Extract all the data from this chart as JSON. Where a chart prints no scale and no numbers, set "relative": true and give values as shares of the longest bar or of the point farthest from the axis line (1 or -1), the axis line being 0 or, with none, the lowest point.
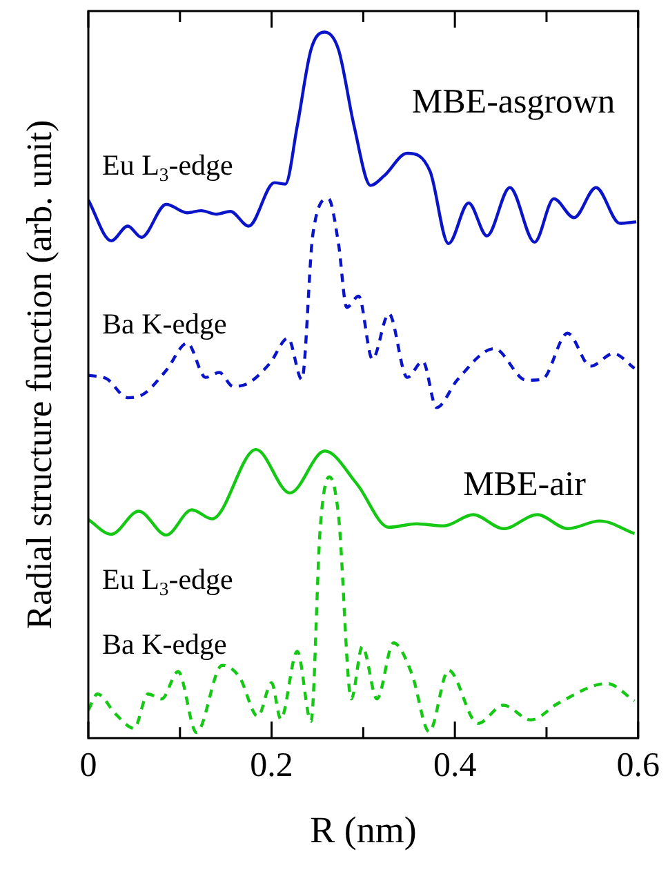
{
  "chart_data": {
    "type": "line",
    "xlabel": "R (nm)",
    "ylabel": "Radial structure function (arb. unit)",
    "relative": true,
    "xlim": [
      0,
      0.6
    ],
    "xticks": [
      0,
      {
        "value": 0.1,
        "label": null
      },
      0.2,
      {
        "value": 0.3,
        "label": null
      },
      0.4,
      {
        "value": 0.5,
        "label": null
      },
      0.6
    ],
    "marker": "none",
    "legend": false,
    "grid": false,
    "annotations": [
      "MBE-asgrown",
      "MBE-air"
    ],
    "series": [
      {
        "name": "Eu L$_{3}$-edge",
        "color": "#0a14c8",
        "line_style": "solid",
        "x": [
          0,
          0.025,
          0.043,
          0.058,
          0.085,
          0.108,
          0.123,
          0.14,
          0.155,
          0.175,
          0.203,
          0.215,
          0.228,
          0.243,
          0.258,
          0.273,
          0.29,
          0.308,
          0.323,
          0.348,
          0.373,
          0.393,
          0.415,
          0.435,
          0.46,
          0.487,
          0.508,
          0.53,
          0.554,
          0.58,
          0.598
        ],
        "values": [
          0.76,
          0.702,
          0.723,
          0.707,
          0.754,
          0.742,
          0.745,
          0.74,
          0.744,
          0.723,
          0.785,
          0.783,
          0.866,
          0.975,
          1.0,
          0.975,
          0.866,
          0.781,
          0.795,
          0.827,
          0.801,
          0.698,
          0.756,
          0.709,
          0.778,
          0.7,
          0.762,
          0.735,
          0.778,
          0.727,
          0.729
        ]
      },
      {
        "name": "Ba K-edge",
        "color": "#0a14c8",
        "line_style": "dashed",
        "x": [
          0,
          0.02,
          0.043,
          0.06,
          0.085,
          0.108,
          0.128,
          0.143,
          0.158,
          0.175,
          0.198,
          0.218,
          0.233,
          0.245,
          0.262,
          0.273,
          0.282,
          0.295,
          0.31,
          0.328,
          0.348,
          0.365,
          0.38,
          0.403,
          0.443,
          0.478,
          0.495,
          0.523,
          0.548,
          0.573,
          0.596
        ],
        "values": [
          0.51,
          0.505,
          0.478,
          0.483,
          0.517,
          0.556,
          0.507,
          0.514,
          0.494,
          0.499,
          0.527,
          0.563,
          0.504,
          0.711,
          0.762,
          0.698,
          0.607,
          0.623,
          0.533,
          0.598,
          0.507,
          0.53,
          0.464,
          0.504,
          0.548,
          0.503,
          0.504,
          0.57,
          0.523,
          0.541,
          0.52
        ]
      },
      {
        "name": "Eu L$_{3}$-edge",
        "color": "#14c814",
        "line_style": "solid",
        "x": [
          0,
          0.025,
          0.055,
          0.085,
          0.113,
          0.135,
          0.183,
          0.22,
          0.258,
          0.293,
          0.328,
          0.358,
          0.388,
          0.42,
          0.453,
          0.49,
          0.523,
          0.558,
          0.596
        ],
        "values": [
          0.304,
          0.283,
          0.316,
          0.282,
          0.318,
          0.305,
          0.404,
          0.342,
          0.402,
          0.355,
          0.293,
          0.298,
          0.295,
          0.311,
          0.291,
          0.311,
          0.291,
          0.302,
          0.284
        ]
      },
      {
        "name": "Ba K-edge",
        "color": "#14c814",
        "line_style": "dashed",
        "x": [
          0,
          0.01,
          0.03,
          0.05,
          0.065,
          0.08,
          0.098,
          0.118,
          0.146,
          0.165,
          0.185,
          0.2,
          0.21,
          0.228,
          0.243,
          0.253,
          0.263,
          0.273,
          0.287,
          0.299,
          0.315,
          0.333,
          0.353,
          0.372,
          0.393,
          0.425,
          0.453,
          0.483,
          0.513,
          0.566,
          0.596
        ],
        "values": [
          0.032,
          0.055,
          0.026,
          0.006,
          0.055,
          0.048,
          0.087,
          0.0,
          0.096,
          0.079,
          0.023,
          0.071,
          0.019,
          0.116,
          0.016,
          0.291,
          0.365,
          0.31,
          0.048,
          0.123,
          0.048,
          0.128,
          0.084,
          0.001,
          0.089,
          0.013,
          0.039,
          0.018,
          0.042,
          0.07,
          0.045
        ]
      }
    ]
  }
}
